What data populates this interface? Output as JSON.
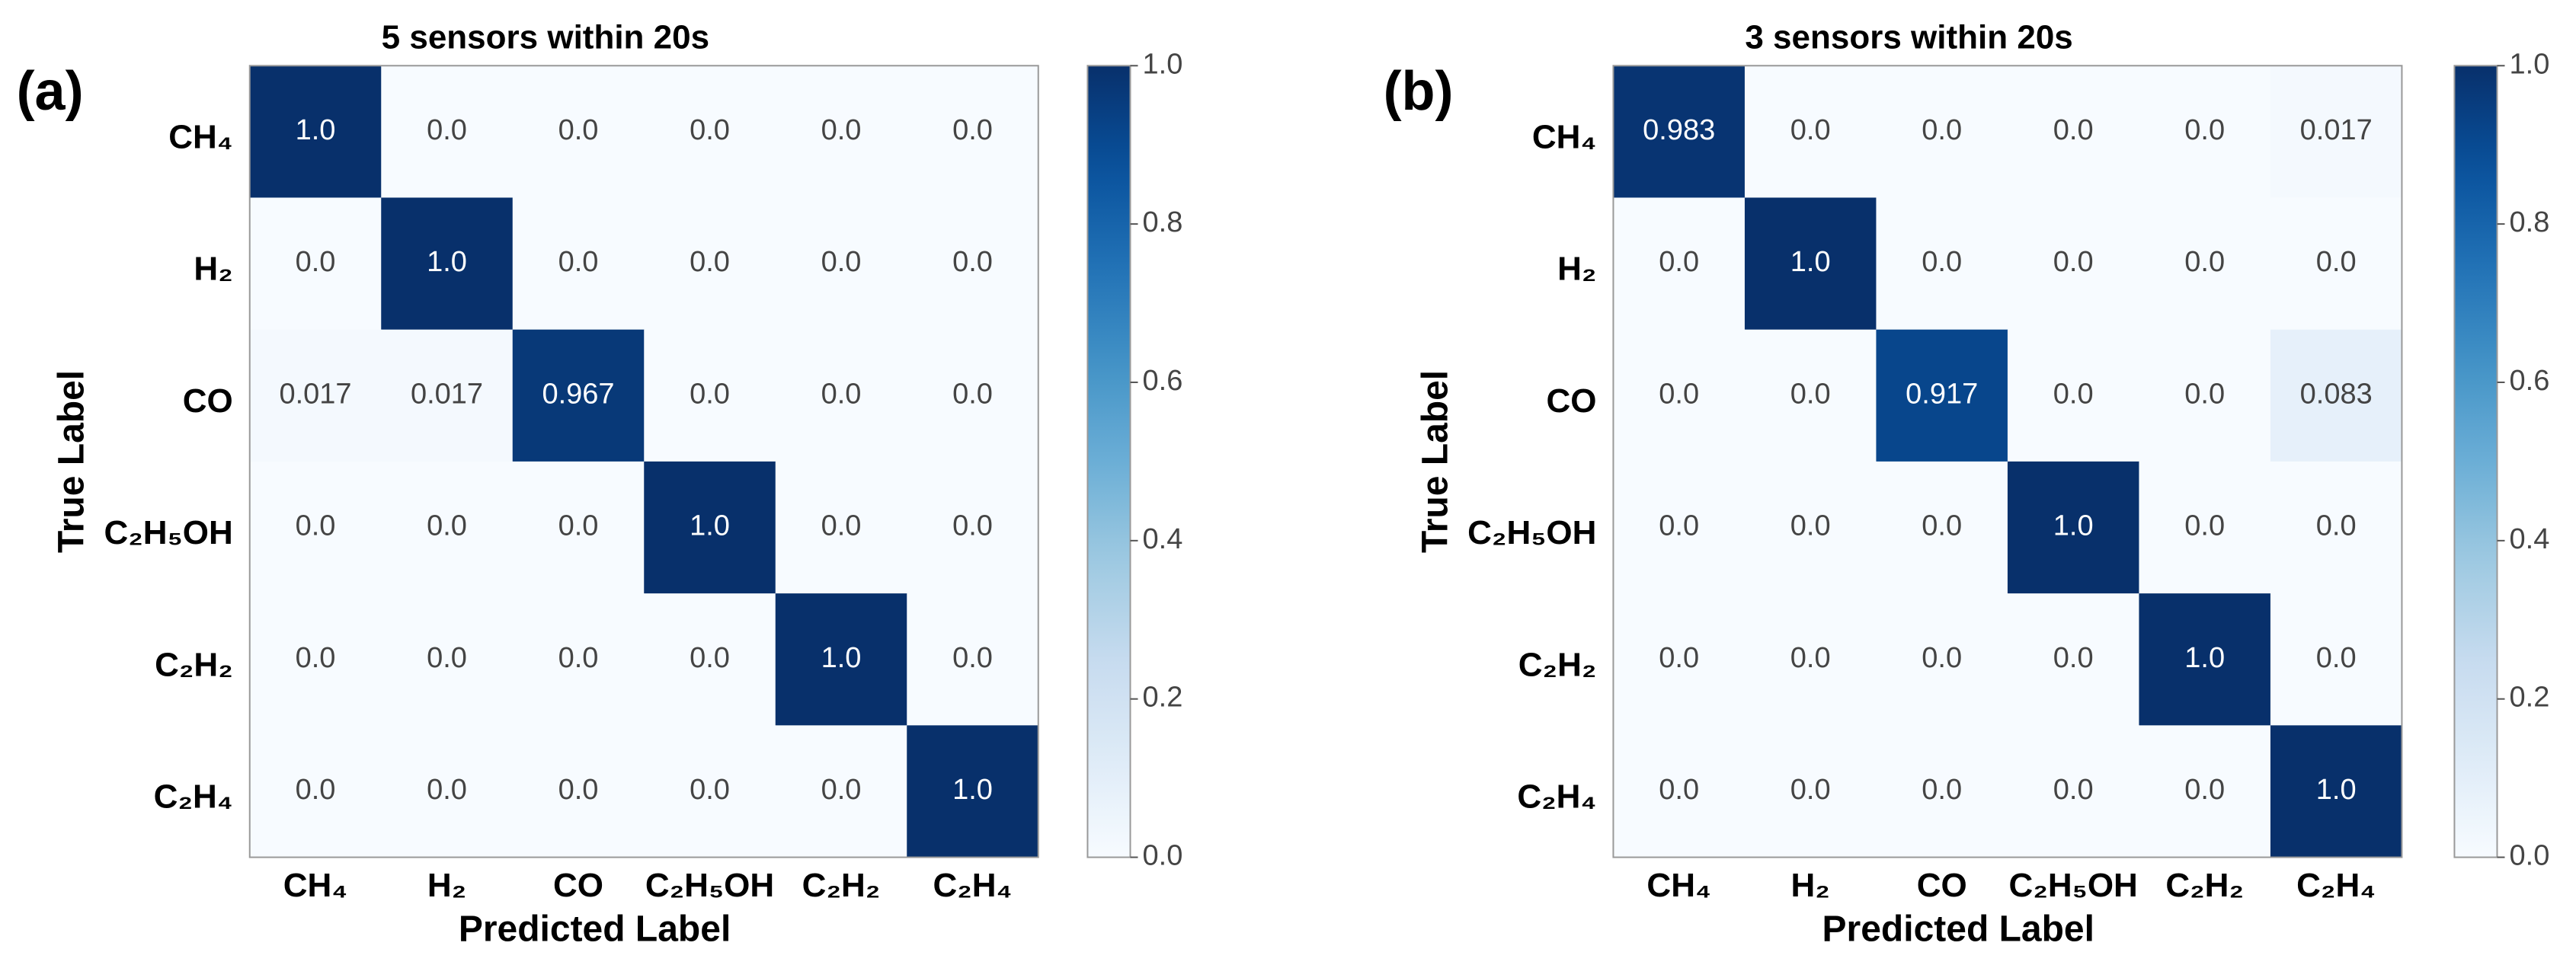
{
  "chart_data": [
    {
      "type": "heatmap",
      "panel_label": "(a)",
      "title": "5 sensors within 20s",
      "x_label": "Predicted Label",
      "y_label": "True Label",
      "x_categories": [
        "CH₄",
        "H₂",
        "CO",
        "C₂H₅OH",
        "C₂H₂",
        "C₂H₄"
      ],
      "y_categories": [
        "CH₄",
        "H₂",
        "CO",
        "C₂H₅OH",
        "C₂H₂",
        "C₂H₄"
      ],
      "values": [
        [
          1,
          0,
          0,
          0,
          0,
          0
        ],
        [
          0,
          1,
          0,
          0,
          0,
          0
        ],
        [
          0.017,
          0.017,
          0.967,
          0,
          0,
          0
        ],
        [
          0,
          0,
          0,
          1,
          0,
          0
        ],
        [
          0,
          0,
          0,
          0,
          1,
          0
        ],
        [
          0,
          0,
          0,
          0,
          0,
          1
        ]
      ],
      "value_labels": [
        [
          "1.0",
          "0.0",
          "0.0",
          "0.0",
          "0.0",
          "0.0"
        ],
        [
          "0.0",
          "1.0",
          "0.0",
          "0.0",
          "0.0",
          "0.0"
        ],
        [
          "0.017",
          "0.017",
          "0.967",
          "0.0",
          "0.0",
          "0.0"
        ],
        [
          "0.0",
          "0.0",
          "0.0",
          "1.0",
          "0.0",
          "0.0"
        ],
        [
          "0.0",
          "0.0",
          "0.0",
          "0.0",
          "1.0",
          "0.0"
        ],
        [
          "0.0",
          "0.0",
          "0.0",
          "0.0",
          "0.0",
          "1.0"
        ]
      ],
      "colormap": "Blues",
      "clim": [
        0,
        1
      ],
      "cticks": [
        {
          "value": 0,
          "label": "0.0"
        },
        0.2,
        0.4,
        0.6,
        0.8,
        {
          "value": 1,
          "label": "1.0"
        }
      ]
    },
    {
      "type": "heatmap",
      "panel_label": "(b)",
      "title": "3 sensors within 20s",
      "x_label": "Predicted Label",
      "y_label": "True Label",
      "x_categories": [
        "CH₄",
        "H₂",
        "CO",
        "C₂H₅OH",
        "C₂H₂",
        "C₂H₄"
      ],
      "y_categories": [
        "CH₄",
        "H₂",
        "CO",
        "C₂H₅OH",
        "C₂H₂",
        "C₂H₄"
      ],
      "values": [
        [
          0.983,
          0,
          0,
          0,
          0,
          0.017
        ],
        [
          0,
          1,
          0,
          0,
          0,
          0
        ],
        [
          0,
          0,
          0.917,
          0,
          0,
          0.083
        ],
        [
          0,
          0,
          0,
          1,
          0,
          0
        ],
        [
          0,
          0,
          0,
          0,
          1,
          0
        ],
        [
          0,
          0,
          0,
          0,
          0,
          1
        ]
      ],
      "value_labels": [
        [
          "0.983",
          "0.0",
          "0.0",
          "0.0",
          "0.0",
          "0.017"
        ],
        [
          "0.0",
          "1.0",
          "0.0",
          "0.0",
          "0.0",
          "0.0"
        ],
        [
          "0.0",
          "0.0",
          "0.917",
          "0.0",
          "0.0",
          "0.083"
        ],
        [
          "0.0",
          "0.0",
          "0.0",
          "1.0",
          "0.0",
          "0.0"
        ],
        [
          "0.0",
          "0.0",
          "0.0",
          "0.0",
          "1.0",
          "0.0"
        ],
        [
          "0.0",
          "0.0",
          "0.0",
          "0.0",
          "0.0",
          "1.0"
        ]
      ],
      "colormap": "Blues",
      "clim": [
        0,
        1
      ],
      "cticks": [
        {
          "value": 0,
          "label": "0.0"
        },
        0.2,
        0.4,
        0.6,
        0.8,
        {
          "value": 1,
          "label": "1.0"
        }
      ]
    }
  ]
}
